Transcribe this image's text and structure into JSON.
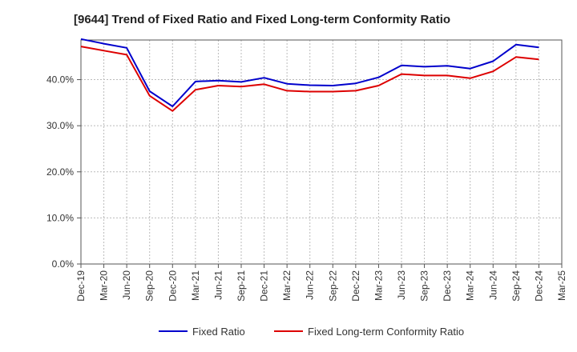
{
  "chart_data": {
    "type": "line",
    "title": "[9644]  Trend of Fixed Ratio and Fixed Long-term Conformity Ratio",
    "xlabel": "",
    "ylabel": "",
    "x": [
      "Dec-19",
      "Mar-20",
      "Jun-20",
      "Sep-20",
      "Dec-20",
      "Mar-21",
      "Jun-21",
      "Sep-21",
      "Dec-21",
      "Mar-22",
      "Jun-22",
      "Sep-22",
      "Dec-22",
      "Mar-23",
      "Jun-23",
      "Sep-23",
      "Dec-23",
      "Mar-24",
      "Jun-24",
      "Sep-24",
      "Dec-24",
      "Mar-25"
    ],
    "yticks": [
      "0.0%",
      "10.0%",
      "20.0%",
      "30.0%",
      "40.0%"
    ],
    "ylim": [
      0,
      48.6
    ],
    "grid": true,
    "legend_position": "bottom",
    "series": [
      {
        "name": "Fixed Ratio",
        "color": "#0000cc",
        "values": [
          48.8,
          47.8,
          46.9,
          37.5,
          34.2,
          39.6,
          39.8,
          39.5,
          40.4,
          39.1,
          38.8,
          38.7,
          39.2,
          40.5,
          43.1,
          42.8,
          43.0,
          42.4,
          44.0,
          47.6,
          47.0,
          null
        ]
      },
      {
        "name": "Fixed Long-term Conformity Ratio",
        "color": "#dd0000",
        "values": [
          47.2,
          46.3,
          45.4,
          36.5,
          33.2,
          37.8,
          38.7,
          38.5,
          39.0,
          37.6,
          37.4,
          37.4,
          37.6,
          38.7,
          41.2,
          40.9,
          40.9,
          40.3,
          41.8,
          44.9,
          44.4,
          null
        ]
      }
    ]
  }
}
